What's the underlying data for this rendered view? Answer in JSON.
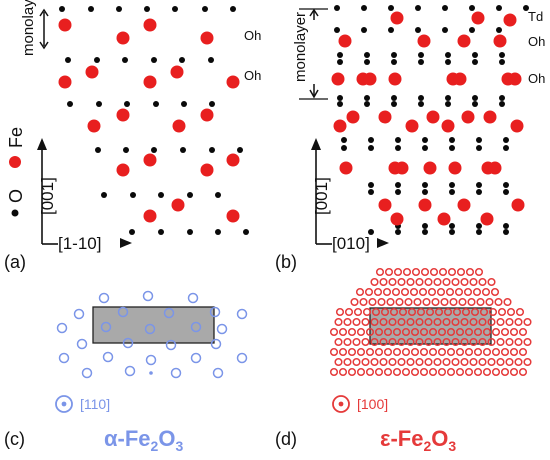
{
  "colors": {
    "fe": "#e81f1f",
    "o": "#0a0a0a",
    "alpha_accent": "#7b95e8",
    "epsilon_accent": "#e53a3a",
    "box_fill": "#a9a9a9"
  },
  "panel_a": {
    "label": "(a)",
    "monolayer_label": "monolayer",
    "site_labels": [
      "Oh",
      "Oh"
    ],
    "axis_vertical": "[001]",
    "axis_horizontal": "[1-10]"
  },
  "legend": {
    "fe_label": "Fe",
    "o_label": "O"
  },
  "panel_b": {
    "label": "(b)",
    "monolayer_label": "monolayer",
    "site_labels": [
      "Td",
      "Oh",
      "Oh"
    ],
    "axis_vertical": "[001]",
    "axis_horizontal": "[010]"
  },
  "panel_c": {
    "label": "(c)",
    "direction": "[110]",
    "title_main": "α-Fe",
    "title_sub1": "2",
    "title_mid": "O",
    "title_sub2": "3"
  },
  "panel_d": {
    "label": "(d)",
    "direction": "[100]",
    "title_main": "ε-Fe",
    "title_sub1": "2",
    "title_mid": "O",
    "title_sub2": "3"
  }
}
